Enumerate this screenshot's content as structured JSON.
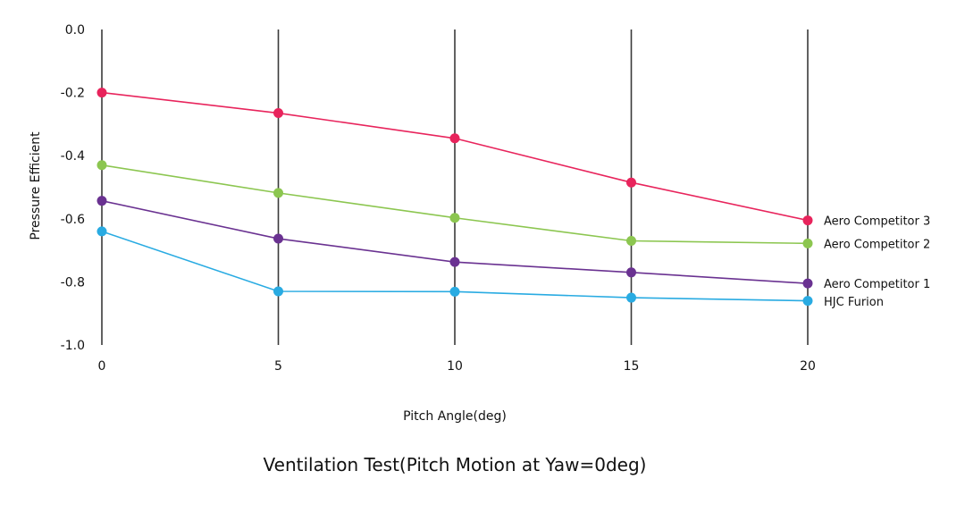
{
  "chart_data": {
    "type": "line",
    "title": "Ventilation Test(Pitch Motion at Yaw=0deg)",
    "xlabel": "Pitch Angle(deg)",
    "ylabel": "Pressure Efficient",
    "x": [
      0,
      5,
      10,
      15,
      20
    ],
    "x_tick_labels": [
      "0",
      "5",
      "10",
      "15",
      "20"
    ],
    "y_tick_labels": [
      "0.0",
      "-0.2",
      "-0.4",
      "-0.6",
      "-0.8",
      "-1.0"
    ],
    "ylim": [
      -1.0,
      0.0
    ],
    "xlim": [
      0,
      20
    ],
    "grid": "vertical lines at each x tick",
    "legend_placement": "right, at line ends",
    "series": [
      {
        "name": "Aero Competitor 3",
        "color": "#e8245c",
        "values": [
          -0.2,
          -0.265,
          -0.345,
          -0.485,
          -0.605
        ]
      },
      {
        "name": "Aero Competitor 2",
        "color": "#8cc650",
        "values": [
          -0.43,
          -0.518,
          -0.597,
          -0.67,
          -0.678
        ]
      },
      {
        "name": "Aero Competitor 1",
        "color": "#6a3291",
        "values": [
          -0.543,
          -0.663,
          -0.737,
          -0.77,
          -0.805
        ]
      },
      {
        "name": "HJC Furion",
        "color": "#29abe2",
        "values": [
          -0.64,
          -0.83,
          -0.831,
          -0.85,
          -0.86
        ]
      }
    ]
  }
}
